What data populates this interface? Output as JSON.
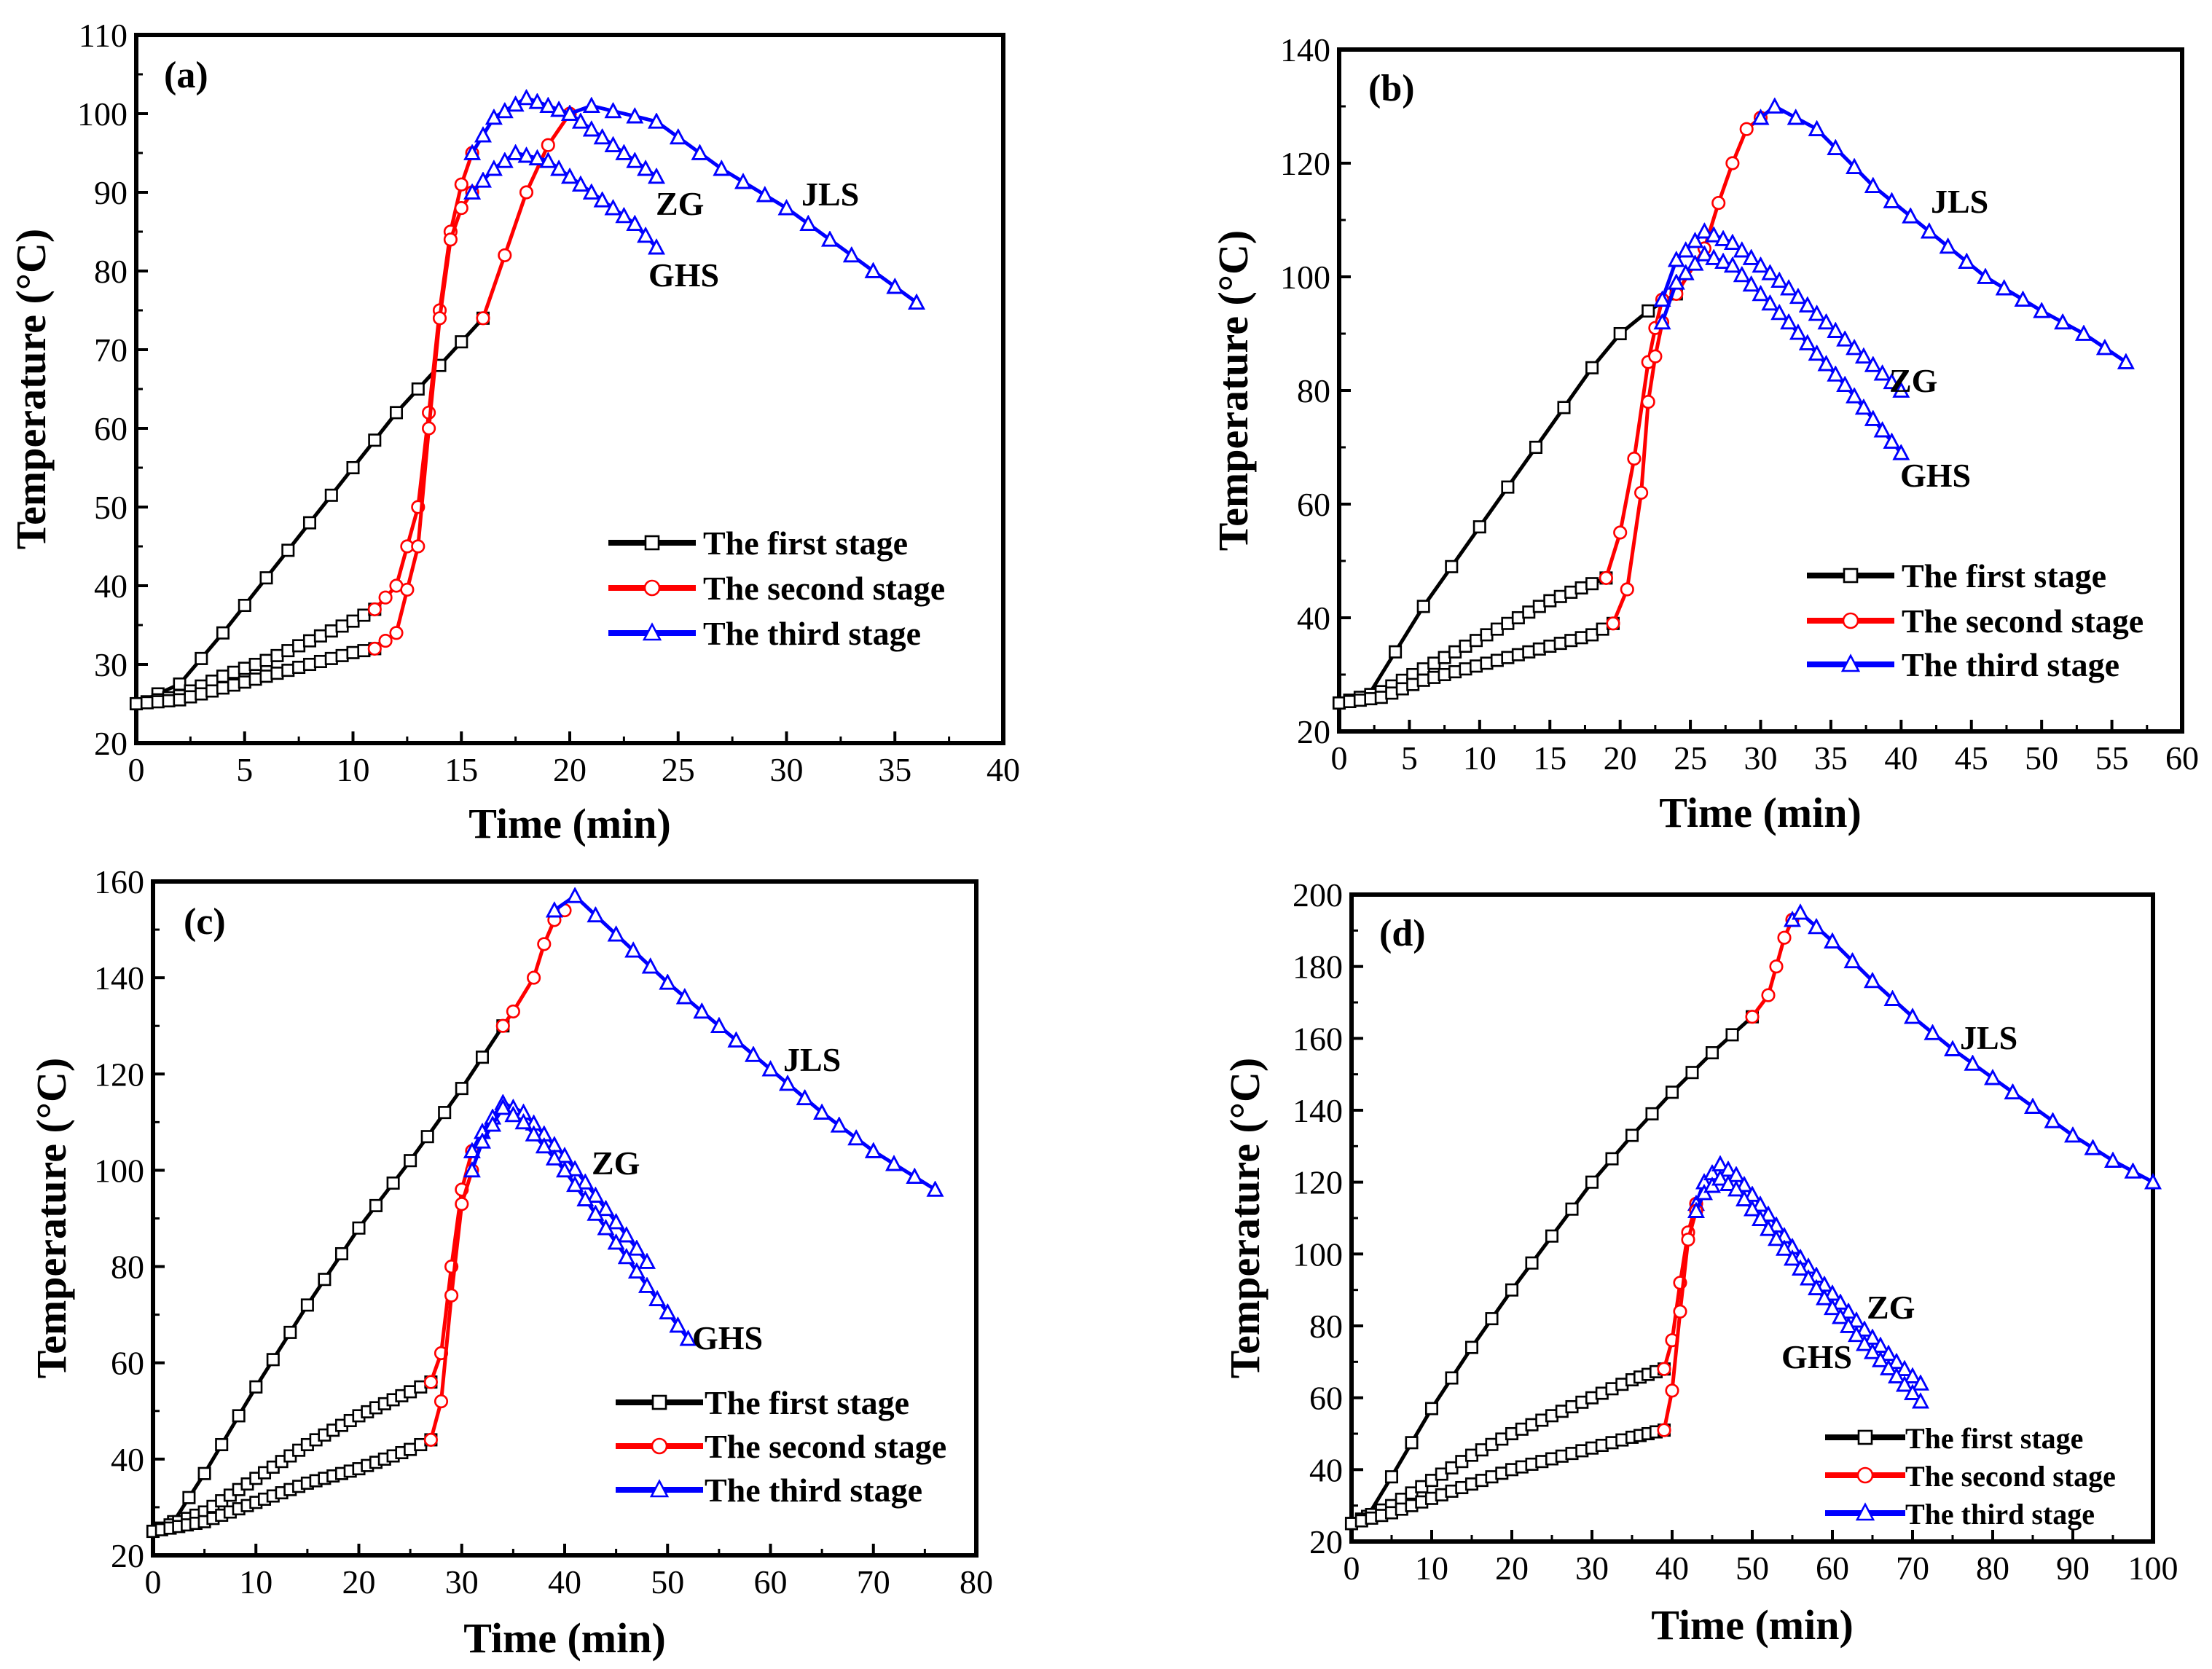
{
  "figure": {
    "colors": {
      "stage1": "#000000",
      "stage2": "#ff0000",
      "stage3": "#0000ff"
    }
  },
  "chart_data": [
    {
      "id": "a",
      "type": "line",
      "panel_label": "(a)",
      "xlabel": "Time (min)",
      "ylabel": "Temperature (°C)",
      "xlim": [
        0,
        40
      ],
      "ylim": [
        20,
        110
      ],
      "xticks": [
        0,
        5,
        10,
        15,
        20,
        25,
        30,
        35,
        40
      ],
      "yticks": [
        20,
        30,
        40,
        50,
        60,
        70,
        80,
        90,
        100,
        110
      ],
      "legend": {
        "position": "bottom-right",
        "entries": [
          "The first stage",
          "The second stage",
          "The third stage"
        ]
      },
      "annotations": [
        "JLS",
        "ZG",
        "GHS"
      ],
      "series": [
        {
          "sample": "JLS",
          "stage": 1,
          "name": "The first stage",
          "x": [
            0,
            2,
            4,
            6,
            8,
            10,
            12,
            14,
            16
          ],
          "y": [
            25,
            27.5,
            34,
            41,
            48,
            55,
            62,
            68,
            74
          ]
        },
        {
          "sample": "JLS",
          "stage": 2,
          "name": "The second stage",
          "x": [
            16,
            17,
            18,
            19,
            20
          ],
          "y": [
            74,
            82,
            90,
            96,
            100
          ]
        },
        {
          "sample": "JLS",
          "stage": 3,
          "name": "The third stage",
          "x": [
            20,
            21,
            24,
            27,
            30,
            33,
            36
          ],
          "y": [
            100,
            101,
            99,
            93,
            88,
            82,
            76
          ]
        },
        {
          "sample": "ZG",
          "stage": 1,
          "name": "The first stage",
          "x": [
            0,
            2,
            4,
            6,
            8,
            10,
            11
          ],
          "y": [
            25,
            26,
            28.5,
            30.5,
            33,
            35.5,
            37
          ]
        },
        {
          "sample": "ZG",
          "stage": 2,
          "name": "The second stage",
          "x": [
            11,
            12,
            13,
            13.5,
            14,
            14.5,
            15,
            15.5
          ],
          "y": [
            37,
            40,
            50,
            62,
            75,
            85,
            91,
            95
          ]
        },
        {
          "sample": "ZG",
          "stage": 3,
          "name": "The third stage",
          "x": [
            15.5,
            16.5,
            18,
            20,
            22,
            24
          ],
          "y": [
            95,
            99.5,
            102,
            100,
            96,
            92
          ]
        },
        {
          "sample": "GHS",
          "stage": 1,
          "name": "The first stage",
          "x": [
            0,
            2,
            4,
            6,
            8,
            10,
            11
          ],
          "y": [
            25,
            25.5,
            27,
            28.5,
            30,
            31.5,
            32
          ]
        },
        {
          "sample": "GHS",
          "stage": 2,
          "name": "The second stage",
          "x": [
            11,
            12,
            13,
            13.5,
            14,
            14.5,
            15,
            15.5
          ],
          "y": [
            32,
            34,
            45,
            60,
            74,
            84,
            88,
            90
          ]
        },
        {
          "sample": "GHS",
          "stage": 3,
          "name": "The third stage",
          "x": [
            15.5,
            16.5,
            17.5,
            19,
            21,
            23,
            24
          ],
          "y": [
            90,
            93,
            95,
            94,
            90,
            86,
            83
          ]
        }
      ]
    },
    {
      "id": "b",
      "type": "line",
      "panel_label": "(b)",
      "xlabel": "Time (min)",
      "ylabel": "Temperature (°C)",
      "xlim": [
        0,
        60
      ],
      "ylim": [
        20,
        140
      ],
      "xticks": [
        0,
        5,
        10,
        15,
        20,
        25,
        30,
        35,
        40,
        45,
        50,
        55,
        60
      ],
      "yticks": [
        20,
        40,
        60,
        80,
        100,
        120,
        140
      ],
      "legend": {
        "position": "bottom-right",
        "entries": [
          "The first stage",
          "The second stage",
          "The third stage"
        ]
      },
      "annotations": [
        "JLS",
        "ZG",
        "GHS"
      ],
      "series": [
        {
          "sample": "JLS",
          "stage": 1,
          "name": "The first stage",
          "x": [
            0,
            2,
            4,
            6,
            8,
            10,
            12,
            14,
            16,
            18,
            20,
            22,
            24
          ],
          "y": [
            25,
            26,
            34,
            42,
            49,
            56,
            63,
            70,
            77,
            84,
            90,
            94,
            97
          ]
        },
        {
          "sample": "JLS",
          "stage": 2,
          "name": "The second stage",
          "x": [
            24,
            26,
            27,
            28,
            29,
            30
          ],
          "y": [
            97,
            105,
            113,
            120,
            126,
            128
          ]
        },
        {
          "sample": "JLS",
          "stage": 3,
          "name": "The third stage",
          "x": [
            30,
            31,
            34,
            38,
            42,
            46,
            50,
            53,
            56
          ],
          "y": [
            128,
            130,
            126,
            116,
            108,
            100,
            94,
            90,
            85
          ]
        },
        {
          "sample": "ZG",
          "stage": 1,
          "name": "The first stage",
          "x": [
            0,
            3,
            6,
            9,
            12,
            15,
            18,
            19
          ],
          "y": [
            25,
            27,
            31,
            35,
            39,
            43,
            46,
            47
          ]
        },
        {
          "sample": "ZG",
          "stage": 2,
          "name": "The second stage",
          "x": [
            19,
            20,
            21,
            22,
            22.5,
            23
          ],
          "y": [
            47,
            55,
            68,
            85,
            91,
            96
          ]
        },
        {
          "sample": "ZG",
          "stage": 3,
          "name": "The third stage",
          "x": [
            23,
            24,
            26,
            28,
            32,
            36,
            40
          ],
          "y": [
            96,
            103,
            108,
            106,
            98,
            89,
            80
          ]
        },
        {
          "sample": "GHS",
          "stage": 1,
          "name": "The first stage",
          "x": [
            0,
            3,
            6,
            9,
            12,
            15,
            18,
            19.5
          ],
          "y": [
            25,
            26,
            29,
            31,
            33,
            35,
            37,
            39
          ]
        },
        {
          "sample": "GHS",
          "stage": 2,
          "name": "The second stage",
          "x": [
            19.5,
            20.5,
            21.5,
            22,
            22.5,
            23
          ],
          "y": [
            39,
            45,
            62,
            78,
            86,
            92
          ]
        },
        {
          "sample": "GHS",
          "stage": 3,
          "name": "The third stage",
          "x": [
            23,
            24,
            26,
            28,
            32,
            36,
            40
          ],
          "y": [
            92,
            99,
            104,
            102,
            92,
            81,
            69
          ]
        }
      ]
    },
    {
      "id": "c",
      "type": "line",
      "panel_label": "(c)",
      "xlabel": "Time (min)",
      "ylabel": "Temperature (°C)",
      "xlim": [
        0,
        80
      ],
      "ylim": [
        20,
        160
      ],
      "xticks": [
        0,
        10,
        20,
        30,
        40,
        50,
        60,
        70,
        80
      ],
      "yticks": [
        20,
        40,
        60,
        80,
        100,
        120,
        140,
        160
      ],
      "legend": {
        "position": "bottom-right",
        "entries": [
          "The first stage",
          "The second stage",
          "The third stage"
        ]
      },
      "annotations": [
        "JLS",
        "ZG",
        "GHS"
      ],
      "series": [
        {
          "sample": "JLS",
          "stage": 1,
          "name": "The first stage",
          "x": [
            0,
            2,
            5,
            10,
            15,
            20,
            25,
            30,
            34
          ],
          "y": [
            25,
            27,
            37,
            55,
            72,
            88,
            102,
            117,
            130
          ]
        },
        {
          "sample": "JLS",
          "stage": 2,
          "name": "The second stage",
          "x": [
            34,
            35,
            37,
            38,
            39,
            40
          ],
          "y": [
            130,
            133,
            140,
            147,
            152,
            154
          ]
        },
        {
          "sample": "JLS",
          "stage": 3,
          "name": "The third stage",
          "x": [
            39,
            41,
            45,
            50,
            55,
            60,
            65,
            70,
            76
          ],
          "y": [
            154,
            157,
            149,
            139,
            130,
            121,
            112,
            104,
            96
          ]
        },
        {
          "sample": "ZG",
          "stage": 1,
          "name": "The first stage",
          "x": [
            0,
            5,
            10,
            15,
            20,
            25,
            27
          ],
          "y": [
            25,
            29,
            36,
            43,
            49,
            54,
            56
          ]
        },
        {
          "sample": "ZG",
          "stage": 2,
          "name": "The second stage",
          "x": [
            27,
            28,
            29,
            30,
            31
          ],
          "y": [
            56,
            62,
            80,
            96,
            104
          ]
        },
        {
          "sample": "ZG",
          "stage": 3,
          "name": "The third stage",
          "x": [
            31,
            32,
            34,
            36,
            40,
            44,
            48
          ],
          "y": [
            104,
            108,
            114,
            112,
            103,
            92,
            81
          ]
        },
        {
          "sample": "GHS",
          "stage": 1,
          "name": "The first stage",
          "x": [
            0,
            5,
            10,
            15,
            20,
            25,
            27
          ],
          "y": [
            25,
            27,
            31,
            35,
            38,
            42,
            44
          ]
        },
        {
          "sample": "GHS",
          "stage": 2,
          "name": "The second stage",
          "x": [
            27,
            28,
            29,
            30,
            31
          ],
          "y": [
            44,
            52,
            74,
            93,
            100
          ]
        },
        {
          "sample": "GHS",
          "stage": 3,
          "name": "The third stage",
          "x": [
            31,
            32,
            34,
            36,
            40,
            44,
            48,
            52
          ],
          "y": [
            100,
            106,
            113,
            110,
            100,
            88,
            76,
            65
          ]
        }
      ]
    },
    {
      "id": "d",
      "type": "line",
      "panel_label": "(d)",
      "xlabel": "Time (min)",
      "ylabel": "Temperature (°C)",
      "xlim": [
        0,
        100
      ],
      "ylim": [
        20,
        200
      ],
      "xticks": [
        0,
        10,
        20,
        30,
        40,
        50,
        60,
        70,
        80,
        90,
        100
      ],
      "yticks": [
        20,
        40,
        60,
        80,
        100,
        120,
        140,
        160,
        180,
        200
      ],
      "legend": {
        "position": "bottom-right",
        "entries": [
          "The first stage",
          "The second stage",
          "The third stage"
        ]
      },
      "annotations": [
        "JLS",
        "ZG",
        "GHS"
      ],
      "series": [
        {
          "sample": "JLS",
          "stage": 1,
          "name": "The first stage",
          "x": [
            0,
            2,
            5,
            10,
            15,
            20,
            25,
            30,
            35,
            40,
            45,
            50
          ],
          "y": [
            25,
            27,
            38,
            57,
            74,
            90,
            105,
            120,
            133,
            145,
            156,
            166
          ]
        },
        {
          "sample": "JLS",
          "stage": 2,
          "name": "The second stage",
          "x": [
            50,
            52,
            53,
            54,
            55
          ],
          "y": [
            166,
            172,
            180,
            188,
            193
          ]
        },
        {
          "sample": "JLS",
          "stage": 3,
          "name": "The third stage",
          "x": [
            55,
            56,
            60,
            65,
            70,
            75,
            80,
            85,
            90,
            95,
            100
          ],
          "y": [
            193,
            195,
            187,
            176,
            166,
            157,
            149,
            141,
            133,
            126,
            120
          ]
        },
        {
          "sample": "ZG",
          "stage": 1,
          "name": "The first stage",
          "x": [
            0,
            5,
            10,
            15,
            20,
            25,
            30,
            35,
            39
          ],
          "y": [
            25,
            30,
            37,
            44,
            50,
            55,
            60,
            65,
            68
          ]
        },
        {
          "sample": "ZG",
          "stage": 2,
          "name": "The second stage",
          "x": [
            39,
            40,
            41,
            42,
            43
          ],
          "y": [
            68,
            76,
            92,
            106,
            114
          ]
        },
        {
          "sample": "ZG",
          "stage": 3,
          "name": "The third stage",
          "x": [
            43,
            44,
            46,
            48,
            52,
            56,
            60,
            64,
            68,
            71
          ],
          "y": [
            114,
            120,
            125,
            122,
            111,
            99,
            89,
            79,
            70,
            64
          ]
        },
        {
          "sample": "GHS",
          "stage": 1,
          "name": "The first stage",
          "x": [
            0,
            5,
            10,
            15,
            20,
            25,
            30,
            35,
            39
          ],
          "y": [
            25,
            28,
            32,
            36,
            40,
            43,
            46,
            49,
            51
          ]
        },
        {
          "sample": "GHS",
          "stage": 2,
          "name": "The second stage",
          "x": [
            39,
            40,
            41,
            42,
            43
          ],
          "y": [
            51,
            62,
            84,
            104,
            112
          ]
        },
        {
          "sample": "GHS",
          "stage": 3,
          "name": "The third stage",
          "x": [
            43,
            44,
            46,
            48,
            52,
            56,
            60,
            64,
            68,
            71
          ],
          "y": [
            112,
            117,
            121,
            118,
            107,
            96,
            85,
            75,
            66,
            59
          ]
        }
      ]
    }
  ]
}
